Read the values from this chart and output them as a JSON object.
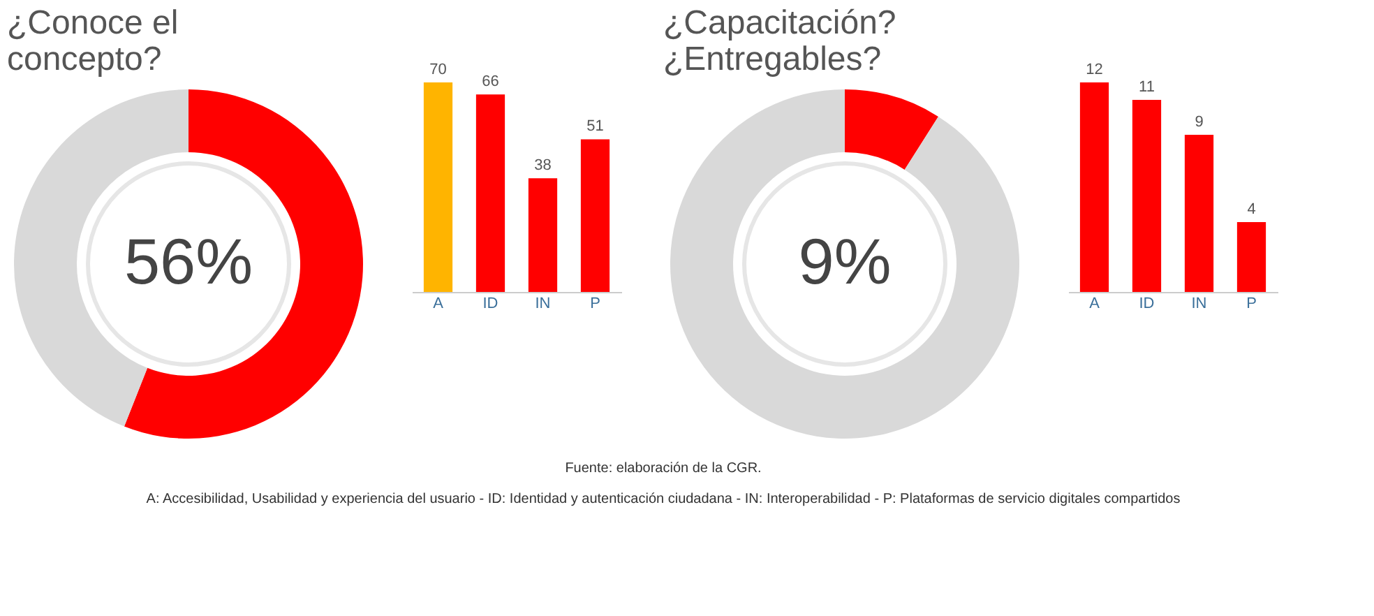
{
  "chart_data": [
    {
      "type": "donut",
      "title": "¿Conoce el concepto?",
      "categories": [
        null,
        null
      ],
      "values": [
        56,
        44
      ],
      "colors": [
        "#ff0000",
        "#d9d9d9"
      ],
      "value_labels": [
        "56%",
        null
      ],
      "legend": false
    },
    {
      "type": "bar",
      "categories": [
        "A",
        "ID",
        "IN",
        "P"
      ],
      "values": [
        70,
        66,
        38,
        51
      ],
      "colors": [
        "#ffb400",
        "#ff0000",
        "#ff0000",
        "#ff0000"
      ],
      "data_labels": true,
      "tick_labels": "x"
    },
    {
      "type": "donut",
      "title": "¿Capacitación? ¿Entregables?",
      "categories": [
        null,
        null
      ],
      "values": [
        9,
        91
      ],
      "colors": [
        "#ff0000",
        "#d9d9d9"
      ],
      "value_labels": [
        "9%",
        null
      ],
      "legend": false
    },
    {
      "type": "bar",
      "categories": [
        "A",
        "ID",
        "IN",
        "P"
      ],
      "values": [
        12,
        11,
        9,
        4
      ],
      "colors": [
        "#ff0000",
        "#ff0000",
        "#ff0000",
        "#ff0000"
      ],
      "data_labels": true,
      "tick_labels": "x",
      "annotations": [
        "Fuente: elaboración de la CGR.",
        "A: Accesibilidad, Usabilidad y experiencia del usuario - ID: Identidad y autenticación ciudadana - IN: Interoperabilidad - P: Plataformas de servicio digitales compartidos"
      ]
    }
  ]
}
